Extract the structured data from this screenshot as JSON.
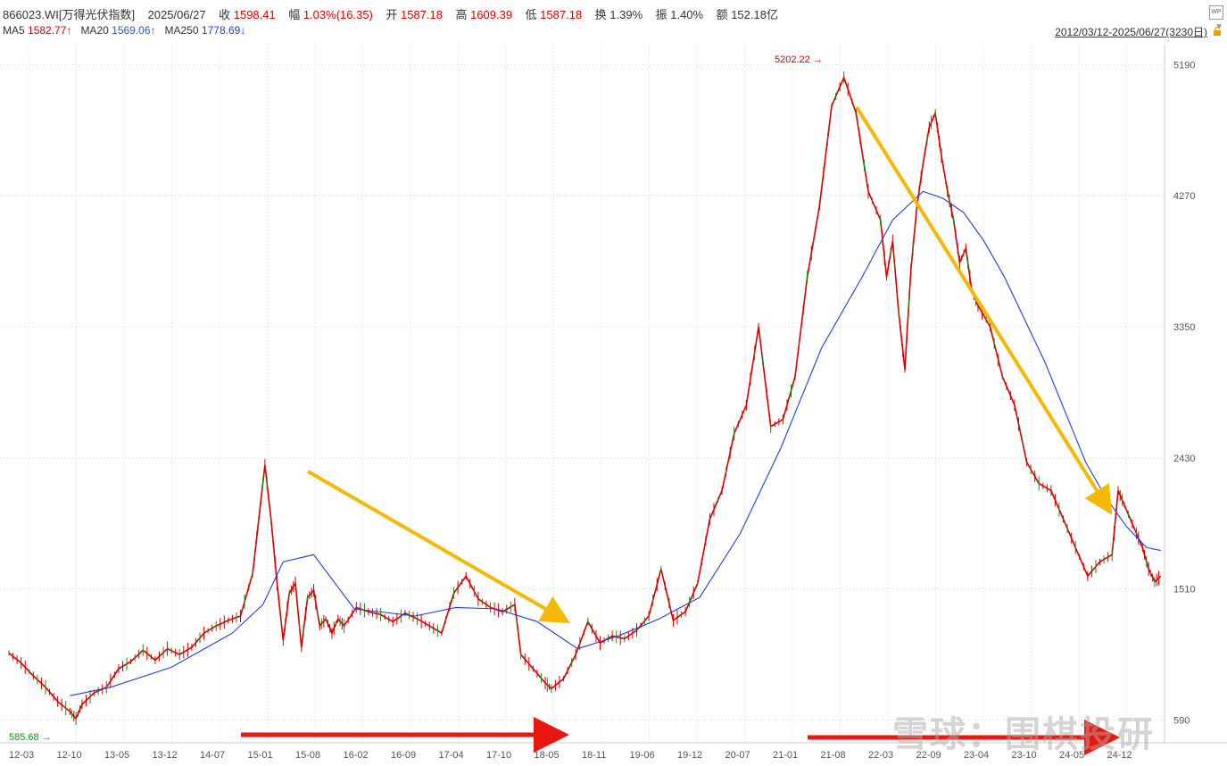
{
  "header": {
    "code": "866023.WI[万得光伏指数]",
    "date": "2025/06/27",
    "close_label": "收",
    "close": "1598.41",
    "change_label": "幅",
    "change": "1.03%(16.35)",
    "open_label": "开",
    "open": "1587.18",
    "high_label": "高",
    "high": "1609.39",
    "low_label": "低",
    "low": "1587.18",
    "turnover_label": "换",
    "turnover": "1.39%",
    "amplitude_label": "振",
    "amplitude": "1.40%",
    "amount_label": "额",
    "amount": "152.18亿"
  },
  "ma": {
    "ma5_label": "MA5",
    "ma5": "1582.77↑",
    "ma20_label": "MA20",
    "ma20": "1569.06↑",
    "ma250_label": "MA250",
    "ma250": "1778.69↓"
  },
  "range": "2012/03/12-2025/06/27(3230日)",
  "watermark": "雪球：围棋投研",
  "icons": {
    "corner": "wp-icon",
    "lock": "lock-icon",
    "dropdown": "triangle-down-icon"
  },
  "colors": {
    "price": "#d40000",
    "ma20": "#2a5fa8",
    "ma250": "#1f3fd0",
    "arrow_yellow": "#f5b800",
    "arrow_red": "#e8170f"
  },
  "chart_data": {
    "type": "line",
    "title": "",
    "y_ticks": [
      590,
      1510,
      2430,
      3350,
      4270,
      5190
    ],
    "ylim": [
      430,
      5330
    ],
    "x_tick_labels": [
      "12-03",
      "12-10",
      "13-05",
      "13-12",
      "14-07",
      "15-01",
      "15-08",
      "16-02",
      "16-09",
      "17-04",
      "17-10",
      "18-05",
      "18-11",
      "19-06",
      "19-12",
      "20-07",
      "21-01",
      "21-08",
      "22-03",
      "22-09",
      "23-04",
      "23-10",
      "24-05",
      "24-12"
    ],
    "annotations": {
      "max_label": "5202.22",
      "min_label": "585.68"
    },
    "series": [
      {
        "values": [
          [
            0,
            1060
          ],
          [
            0.6,
            990
          ],
          [
            1.2,
            900
          ],
          [
            1.8,
            820
          ],
          [
            2.4,
            720
          ],
          [
            3,
            650
          ],
          [
            3.3,
            600
          ],
          [
            3.6,
            700
          ],
          [
            4.2,
            780
          ],
          [
            4.8,
            820
          ],
          [
            5.4,
            950
          ],
          [
            6,
            1000
          ],
          [
            6.6,
            1080
          ],
          [
            7.2,
            1010
          ],
          [
            7.8,
            1090
          ],
          [
            8.4,
            1050
          ],
          [
            9,
            1100
          ],
          [
            9.6,
            1200
          ],
          [
            10.2,
            1250
          ],
          [
            10.8,
            1290
          ],
          [
            11.4,
            1320
          ],
          [
            12,
            1620
          ],
          [
            12.3,
            2000
          ],
          [
            12.6,
            2380
          ],
          [
            12.9,
            2000
          ],
          [
            13.2,
            1550
          ],
          [
            13.5,
            1150
          ],
          [
            13.8,
            1480
          ],
          [
            14.1,
            1550
          ],
          [
            14.4,
            1100
          ],
          [
            14.7,
            1450
          ],
          [
            15,
            1500
          ],
          [
            15.3,
            1250
          ],
          [
            15.6,
            1300
          ],
          [
            15.9,
            1200
          ],
          [
            16.2,
            1300
          ],
          [
            16.5,
            1250
          ],
          [
            17.1,
            1380
          ],
          [
            17.7,
            1350
          ],
          [
            18.3,
            1330
          ],
          [
            18.9,
            1280
          ],
          [
            19.5,
            1340
          ],
          [
            20.1,
            1300
          ],
          [
            20.7,
            1250
          ],
          [
            21.3,
            1200
          ],
          [
            21.9,
            1480
          ],
          [
            22.5,
            1600
          ],
          [
            23.1,
            1440
          ],
          [
            23.7,
            1380
          ],
          [
            24.3,
            1350
          ],
          [
            24.9,
            1400
          ],
          [
            25.2,
            1050
          ],
          [
            25.8,
            950
          ],
          [
            26.4,
            850
          ],
          [
            26.7,
            810
          ],
          [
            27.3,
            880
          ],
          [
            27.9,
            1050
          ],
          [
            28.5,
            1280
          ],
          [
            29.1,
            1130
          ],
          [
            29.7,
            1180
          ],
          [
            30.3,
            1160
          ],
          [
            30.9,
            1220
          ],
          [
            31.5,
            1320
          ],
          [
            32.1,
            1650
          ],
          [
            32.7,
            1290
          ],
          [
            33.3,
            1350
          ],
          [
            33.9,
            1550
          ],
          [
            34.5,
            2000
          ],
          [
            35.1,
            2200
          ],
          [
            35.7,
            2600
          ],
          [
            36.3,
            2800
          ],
          [
            36.9,
            3350
          ],
          [
            37.5,
            2650
          ],
          [
            38.1,
            2700
          ],
          [
            38.7,
            3000
          ],
          [
            39.3,
            3700
          ],
          [
            39.9,
            4200
          ],
          [
            40.5,
            4900
          ],
          [
            41.1,
            5100
          ],
          [
            41.7,
            4850
          ],
          [
            42.3,
            4300
          ],
          [
            42.9,
            4100
          ],
          [
            43.2,
            3700
          ],
          [
            43.5,
            3950
          ],
          [
            43.8,
            3450
          ],
          [
            44.1,
            3050
          ],
          [
            44.4,
            3750
          ],
          [
            44.7,
            4200
          ],
          [
            45,
            4500
          ],
          [
            45.3,
            4750
          ],
          [
            45.6,
            4850
          ],
          [
            45.9,
            4550
          ],
          [
            46.2,
            4300
          ],
          [
            46.5,
            4100
          ],
          [
            46.8,
            3800
          ],
          [
            47.1,
            3900
          ],
          [
            47.4,
            3600
          ],
          [
            47.7,
            3500
          ],
          [
            48.3,
            3350
          ],
          [
            48.9,
            3000
          ],
          [
            49.5,
            2800
          ],
          [
            50.1,
            2400
          ],
          [
            50.7,
            2250
          ],
          [
            51.3,
            2200
          ],
          [
            51.9,
            2000
          ],
          [
            52.5,
            1800
          ],
          [
            53.1,
            1600
          ],
          [
            53.7,
            1700
          ],
          [
            54.3,
            1750
          ],
          [
            54.6,
            2200
          ],
          [
            54.9,
            2100
          ],
          [
            55.5,
            1900
          ],
          [
            55.8,
            1800
          ],
          [
            56.1,
            1650
          ],
          [
            56.4,
            1560
          ],
          [
            56.7,
            1600
          ]
        ]
      },
      {
        "name": "MA250",
        "values": [
          [
            3,
            760
          ],
          [
            5,
            820
          ],
          [
            8,
            960
          ],
          [
            11,
            1200
          ],
          [
            12.5,
            1400
          ],
          [
            13.5,
            1700
          ],
          [
            15,
            1750
          ],
          [
            17,
            1370
          ],
          [
            20,
            1320
          ],
          [
            22,
            1380
          ],
          [
            24,
            1370
          ],
          [
            26,
            1280
          ],
          [
            28,
            1090
          ],
          [
            30,
            1180
          ],
          [
            32,
            1300
          ],
          [
            34,
            1450
          ],
          [
            36,
            1900
          ],
          [
            38,
            2500
          ],
          [
            40,
            3200
          ],
          [
            42,
            3700
          ],
          [
            43.5,
            4100
          ],
          [
            45,
            4300
          ],
          [
            46,
            4250
          ],
          [
            47,
            4150
          ],
          [
            48,
            3950
          ],
          [
            49,
            3700
          ],
          [
            50,
            3400
          ],
          [
            51,
            3100
          ],
          [
            52,
            2750
          ],
          [
            53,
            2400
          ],
          [
            54,
            2150
          ],
          [
            55,
            1950
          ],
          [
            56,
            1800
          ],
          [
            56.7,
            1780
          ]
        ]
      }
    ]
  }
}
